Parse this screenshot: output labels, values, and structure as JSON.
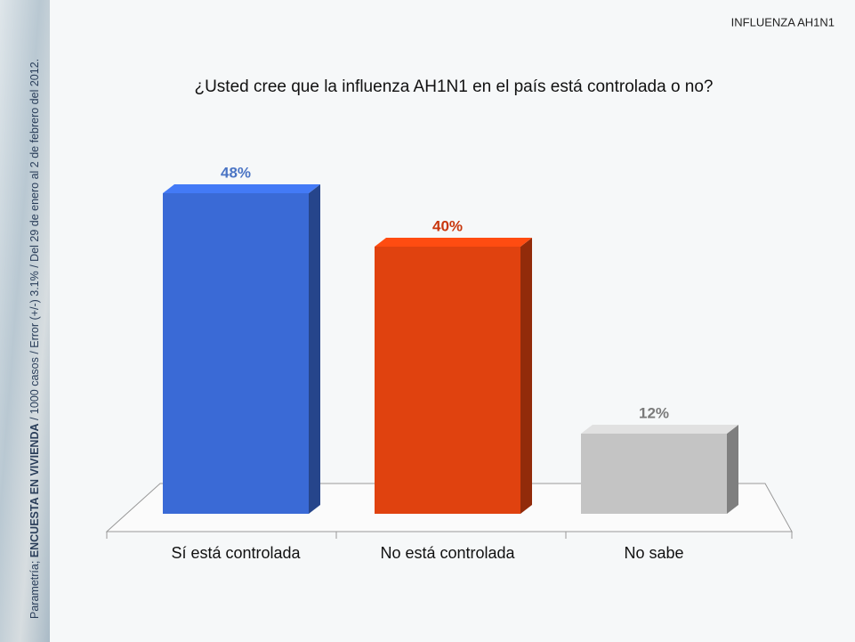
{
  "header": "INFLUENZA AH1N1",
  "source": [
    "Parametría; ",
    "ENCUESTA EN VIVIENDA",
    " / 1000 casos / Error (+/-) 3.1% / Del 29 de enero al 2 de febrero del 2012."
  ],
  "chart_data": {
    "type": "bar",
    "title": "¿Usted cree que la influenza AH1N1 en el país está controlada o no?",
    "categories": [
      "Sí está controlada",
      "No está controlada",
      "No sabe"
    ],
    "values": [
      48,
      40,
      12
    ],
    "value_labels": [
      "48%",
      "40%",
      "12%"
    ],
    "colors": [
      "#3a6ad6",
      "#e0420f",
      "#c4c4c4"
    ],
    "label_colors": [
      "#4a74c4",
      "#c8360c",
      "#7a7a7a"
    ]
  }
}
